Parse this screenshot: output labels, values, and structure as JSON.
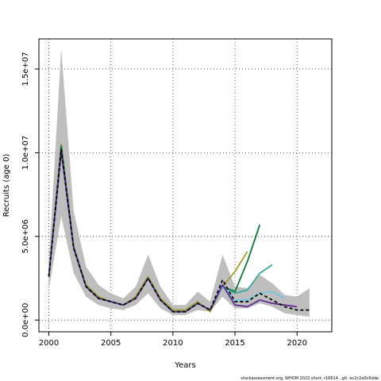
{
  "footer": "stockassessment.org, WHOM 2022 short, r16614 , git: ec2c2a0c6dde",
  "chart_data": {
    "type": "line",
    "xlabel": "Years",
    "ylabel": "Recruits (age 0)",
    "xlim": [
      1999.2,
      2022.8
    ],
    "ylim": [
      -700000,
      16800000
    ],
    "x_ticks": [
      2000,
      2005,
      2010,
      2015,
      2020
    ],
    "x_tick_labels": [
      "2000",
      "2005",
      "2010",
      "2015",
      "2020"
    ],
    "y_ticks": [
      0,
      5000000,
      10000000,
      15000000
    ],
    "y_tick_labels": [
      "0.0e+00",
      "5.0e+06",
      "1.0e+07",
      "1.5e+07"
    ],
    "grid": "dotted at ticks",
    "confidence_band": {
      "color": "#bebebe",
      "x": [
        2000,
        2001,
        2002,
        2003,
        2004,
        2005,
        2006,
        2007,
        2008,
        2009,
        2010,
        2011,
        2012,
        2013,
        2014,
        2015,
        2016,
        2017,
        2018,
        2019,
        2020,
        2021
      ],
      "upper": [
        3500000,
        16200000,
        6500000,
        3200000,
        2100000,
        1600000,
        1300000,
        2000000,
        3900000,
        2000000,
        900000,
        900000,
        1700000,
        1100000,
        3900000,
        2000000,
        1900000,
        2700000,
        2200000,
        1500000,
        1400000,
        1900000
      ],
      "lower": [
        1800000,
        6200000,
        2800000,
        1400000,
        900000,
        700000,
        600000,
        900000,
        1600000,
        700000,
        300000,
        300000,
        600000,
        500000,
        1400000,
        700000,
        700000,
        1000000,
        800000,
        400000,
        300000,
        200000
      ]
    },
    "series": [
      {
        "color": "#000000",
        "dashed": true,
        "x": [
          2000,
          2001,
          2002,
          2003,
          2004,
          2005,
          2006,
          2007,
          2008,
          2009,
          2010,
          2011,
          2012,
          2013,
          2014,
          2015,
          2016,
          2017,
          2018,
          2019,
          2020,
          2021
        ],
        "y": [
          2600000,
          10200000,
          4300000,
          2000000,
          1300000,
          1100000,
          900000,
          1300000,
          2500000,
          1200000,
          500000,
          500000,
          1000000,
          600000,
          2400000,
          1100000,
          1100000,
          1600000,
          1200000,
          800000,
          600000,
          600000
        ]
      },
      {
        "color": "#5e2a8e",
        "dashed": false,
        "x": [
          2000,
          2001,
          2002,
          2003,
          2004,
          2005,
          2006,
          2007,
          2008,
          2009,
          2010,
          2011,
          2012,
          2013,
          2014,
          2015,
          2016,
          2017,
          2018,
          2019,
          2020
        ],
        "y": [
          2600000,
          10100000,
          4300000,
          2000000,
          1300000,
          1100000,
          900000,
          1300000,
          2500000,
          1200000,
          500000,
          500000,
          1000000,
          600000,
          2100000,
          900000,
          800000,
          1200000,
          1000000,
          900000,
          800000
        ]
      },
      {
        "color": "#6fc7e6",
        "dashed": false,
        "x": [
          2000,
          2001,
          2002,
          2003,
          2004,
          2005,
          2006,
          2007,
          2008,
          2009,
          2010,
          2011,
          2012,
          2013,
          2014,
          2015,
          2016,
          2017,
          2018,
          2019
        ],
        "y": [
          2600000,
          10100000,
          4300000,
          2000000,
          1300000,
          1100000,
          900000,
          1300000,
          2500000,
          1200000,
          500000,
          500000,
          1000000,
          600000,
          2000000,
          1200000,
          1200000,
          1600000,
          1700000,
          1300000
        ]
      },
      {
        "color": "#3aa8a0",
        "dashed": false,
        "x": [
          2000,
          2001,
          2002,
          2003,
          2004,
          2005,
          2006,
          2007,
          2008,
          2009,
          2010,
          2011,
          2012,
          2013,
          2014,
          2015,
          2016,
          2017,
          2018
        ],
        "y": [
          2600000,
          10100000,
          4300000,
          2000000,
          1300000,
          1100000,
          900000,
          1300000,
          2500000,
          1200000,
          500000,
          500000,
          1000000,
          600000,
          2000000,
          1600000,
          1800000,
          2800000,
          3300000
        ]
      },
      {
        "color": "#0a7a3a",
        "dashed": false,
        "x": [
          2000,
          2001,
          2002,
          2003,
          2004,
          2005,
          2006,
          2007,
          2008,
          2009,
          2010,
          2011,
          2012,
          2013,
          2014,
          2015,
          2016,
          2017
        ],
        "y": [
          2600000,
          10400000,
          4400000,
          2000000,
          1300000,
          1100000,
          900000,
          1300000,
          2500000,
          1200000,
          500000,
          500000,
          1000000,
          600000,
          2000000,
          1700000,
          3500000,
          5700000
        ]
      },
      {
        "color": "#a0a02a",
        "dashed": false,
        "x": [
          2000,
          2001,
          2002,
          2003,
          2004,
          2005,
          2006,
          2007,
          2008,
          2009,
          2010,
          2011,
          2012,
          2013,
          2014,
          2015,
          2016
        ],
        "y": [
          2600000,
          10500000,
          4300000,
          2100000,
          1400000,
          1100000,
          900000,
          1400000,
          2600000,
          1300000,
          600000,
          600000,
          1100000,
          500000,
          2000000,
          2900000,
          4100000
        ]
      }
    ]
  }
}
